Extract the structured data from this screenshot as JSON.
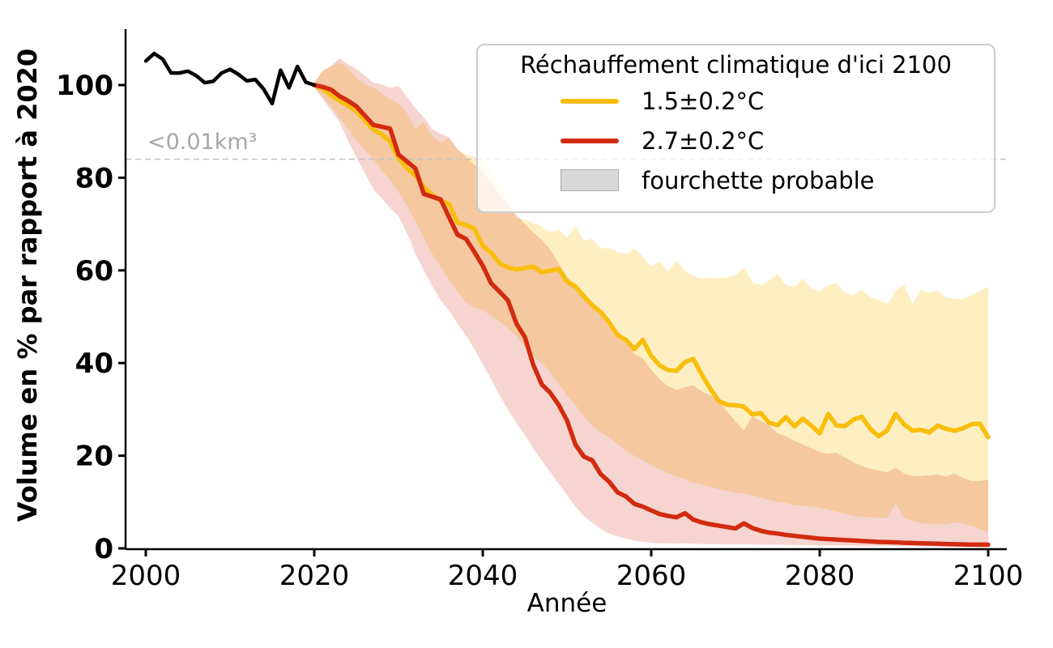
{
  "figure": {
    "y_axis_label": "Volume en % par rapport à 2020",
    "x_axis_label": "Année",
    "threshold_label": "<0.01km³"
  },
  "legend": {
    "title": "Réchauffement climatique d'ici 2100",
    "items": [
      {
        "label": "1.5±0.2°C",
        "swatch": "line",
        "color": "#f9be0b"
      },
      {
        "label": "2.7±0.2°C",
        "swatch": "line",
        "color": "#d22b10"
      },
      {
        "label": "fourchette probable",
        "swatch": "patch",
        "color": "#d9d9d9"
      }
    ]
  },
  "chart_data": {
    "type": "line",
    "title": "",
    "xlabel": "Année",
    "ylabel": "Volume en % par rapport à 2020",
    "xlim": [
      1997.6,
      2102.2
    ],
    "ylim": [
      0,
      112
    ],
    "xticks": [
      2000,
      2020,
      2040,
      2060,
      2080,
      2100
    ],
    "yticks": [
      0,
      20,
      40,
      60,
      80,
      100
    ],
    "grid": false,
    "legend_position": "upper right",
    "threshold": {
      "value": 84,
      "label": "<0.01km³",
      "style": "dashed",
      "color": "#c4c4c4"
    },
    "colors": {
      "historical": "#000000",
      "scenario_15": "#f9be0b",
      "scenario_27": "#d22b10",
      "band_15_fill": "rgba(250,191,15,0.25)",
      "band_27_fill": "rgba(208,44,18,0.20)"
    },
    "series": [
      {
        "name": "historique 2000-2020",
        "color": "#000000",
        "x": [
          2000,
          2001,
          2002,
          2003,
          2004,
          2005,
          2006,
          2007,
          2008,
          2009,
          2010,
          2011,
          2012,
          2013,
          2014,
          2015,
          2016,
          2017,
          2018,
          2019,
          2020
        ],
        "y": [
          105.2,
          106.8,
          105.6,
          102.6,
          102.6,
          103.0,
          102.0,
          100.5,
          100.8,
          102.6,
          103.4,
          102.3,
          100.9,
          101.2,
          99.1,
          96.0,
          103.2,
          99.4,
          104.0,
          100.6,
          100.0
        ]
      },
      {
        "name": "1.5±0.2°C",
        "color": "#f9be0b",
        "x": [
          2020,
          2021,
          2022,
          2023,
          2024,
          2025,
          2026,
          2027,
          2028,
          2029,
          2030,
          2031,
          2032,
          2033,
          2034,
          2035,
          2036,
          2037,
          2038,
          2039,
          2040,
          2041,
          2042,
          2043,
          2044,
          2045,
          2046,
          2047,
          2048,
          2049,
          2050,
          2051,
          2052,
          2053,
          2054,
          2055,
          2056,
          2057,
          2058,
          2059,
          2060,
          2061,
          2062,
          2063,
          2064,
          2065,
          2066,
          2067,
          2068,
          2069,
          2070,
          2071,
          2072,
          2073,
          2074,
          2075,
          2076,
          2077,
          2078,
          2079,
          2080,
          2081,
          2082,
          2083,
          2084,
          2085,
          2086,
          2087,
          2088,
          2089,
          2090,
          2091,
          2092,
          2093,
          2094,
          2095,
          2096,
          2097,
          2098,
          2099,
          2100
        ],
        "y": [
          100.0,
          99.2,
          97.8,
          96.6,
          95.6,
          94.4,
          92.4,
          90.4,
          89.4,
          87.8,
          84.3,
          82.0,
          80.5,
          78.0,
          76.3,
          75.0,
          74.4,
          70.3,
          69.8,
          69.0,
          65.3,
          63.8,
          61.5,
          60.6,
          60.2,
          60.5,
          60.8,
          59.6,
          59.9,
          60.3,
          57.6,
          56.5,
          54.4,
          52.5,
          51.0,
          48.8,
          46.0,
          45.0,
          43.0,
          45.0,
          41.5,
          39.5,
          38.5,
          38.3,
          40.2,
          40.9,
          37.5,
          34.5,
          31.8,
          31.0,
          30.9,
          30.6,
          28.9,
          29.2,
          27.1,
          26.6,
          28.3,
          26.3,
          28.0,
          26.5,
          24.8,
          29.0,
          26.5,
          26.4,
          27.8,
          28.4,
          25.8,
          24.2,
          25.4,
          29.0,
          26.8,
          25.4,
          25.6,
          25.0,
          26.5,
          25.8,
          25.4,
          25.9,
          26.8,
          26.9,
          24.0
        ],
        "band_low": [
          99.5,
          97.5,
          95.5,
          93.0,
          90.5,
          88.1,
          86.0,
          84.0,
          81.6,
          79.5,
          76.9,
          74.0,
          70.6,
          67.0,
          63.6,
          60.7,
          58.0,
          55.5,
          53.1,
          52.0,
          51.4,
          50.2,
          49.0,
          47.5,
          45.8,
          43.5,
          41.5,
          40.0,
          38.0,
          35.5,
          33.0,
          31.0,
          28.5,
          26.5,
          25.0,
          24.0,
          22.5,
          21.0,
          20.0,
          19.0,
          18.0,
          17.0,
          16.2,
          15.5,
          15.0,
          14.2,
          13.8,
          13.2,
          12.8,
          12.4,
          12.0,
          11.8,
          11.4,
          11.0,
          10.5,
          10.0,
          9.8,
          9.4,
          9.2,
          9.0,
          8.8,
          8.4,
          7.9,
          7.5,
          7.1,
          6.8,
          6.7,
          6.6,
          6.5,
          9.7,
          6.5,
          6.0,
          5.4,
          5.3,
          5.3,
          5.2,
          5.6,
          5.4,
          4.8,
          4.2,
          3.4
        ],
        "band_high": [
          100.5,
          103.0,
          104.0,
          105.0,
          103.5,
          101.5,
          100.2,
          99.5,
          98.2,
          97.0,
          96.0,
          94.0,
          90.5,
          92.0,
          89.0,
          87.5,
          88.5,
          86.0,
          85.0,
          84.5,
          83.5,
          81.0,
          78.0,
          74.5,
          71.2,
          71.0,
          70.2,
          69.5,
          68.3,
          68.8,
          67.1,
          69.5,
          66.5,
          66.8,
          64.7,
          64.9,
          64.0,
          63.5,
          64.8,
          63.0,
          60.8,
          62.0,
          59.8,
          62.1,
          59.9,
          58.7,
          58.3,
          58.4,
          58.3,
          58.5,
          59.0,
          60.6,
          57.5,
          56.8,
          57.8,
          59.3,
          56.8,
          56.5,
          58.3,
          56.2,
          55.4,
          56.8,
          57.2,
          55.2,
          54.6,
          55.8,
          54.2,
          53.6,
          52.8,
          55.6,
          57.0,
          52.8,
          55.8,
          55.2,
          55.7,
          54.2,
          53.9,
          53.8,
          54.6,
          55.5,
          56.5
        ]
      },
      {
        "name": "2.7±0.2°C",
        "color": "#d22b10",
        "x": [
          2020,
          2021,
          2022,
          2023,
          2024,
          2025,
          2026,
          2027,
          2028,
          2029,
          2030,
          2031,
          2032,
          2033,
          2034,
          2035,
          2036,
          2037,
          2038,
          2039,
          2040,
          2041,
          2042,
          2043,
          2044,
          2045,
          2046,
          2047,
          2048,
          2049,
          2050,
          2051,
          2052,
          2053,
          2054,
          2055,
          2056,
          2057,
          2058,
          2059,
          2060,
          2061,
          2062,
          2063,
          2064,
          2065,
          2066,
          2067,
          2068,
          2069,
          2070,
          2071,
          2072,
          2073,
          2074,
          2075,
          2076,
          2077,
          2078,
          2079,
          2080,
          2081,
          2082,
          2083,
          2084,
          2085,
          2086,
          2087,
          2088,
          2089,
          2090,
          2091,
          2092,
          2093,
          2094,
          2095,
          2096,
          2097,
          2098,
          2099,
          2100
        ],
        "y": [
          100.0,
          99.6,
          99.0,
          97.6,
          96.6,
          95.4,
          93.4,
          91.4,
          91.0,
          90.6,
          85.0,
          83.5,
          82.0,
          76.5,
          75.9,
          75.3,
          71.5,
          67.7,
          66.8,
          64.0,
          61.0,
          57.2,
          55.4,
          53.5,
          48.5,
          45.6,
          39.6,
          35.4,
          33.6,
          31.0,
          27.6,
          22.4,
          19.8,
          19.0,
          16.0,
          14.4,
          12.1,
          11.2,
          9.6,
          9.0,
          8.2,
          7.4,
          7.0,
          6.7,
          7.6,
          6.2,
          5.6,
          5.2,
          4.9,
          4.6,
          4.3,
          5.4,
          4.4,
          3.8,
          3.4,
          3.2,
          2.9,
          2.7,
          2.5,
          2.3,
          2.1,
          2.0,
          1.9,
          1.8,
          1.7,
          1.6,
          1.5,
          1.4,
          1.35,
          1.3,
          1.2,
          1.15,
          1.1,
          1.05,
          1.0,
          0.95,
          0.9,
          0.85,
          0.8,
          0.8,
          0.8
        ],
        "band_low": [
          99.5,
          97.0,
          94.5,
          92.0,
          88.0,
          84.3,
          81.0,
          77.6,
          75.5,
          73.5,
          71.7,
          68.0,
          63.6,
          60.0,
          56.6,
          53.6,
          51.3,
          48.5,
          46.0,
          43.0,
          39.7,
          36.5,
          33.0,
          30.0,
          27.0,
          24.5,
          21.5,
          19.0,
          16.5,
          14.0,
          11.5,
          9.0,
          7.0,
          5.5,
          4.2,
          3.2,
          2.6,
          2.1,
          1.7,
          1.4,
          1.2,
          1.1,
          1.05,
          1.0,
          1.1,
          1.0,
          0.95,
          0.9,
          0.9,
          0.85,
          0.85,
          0.9,
          0.85,
          0.8,
          0.8,
          0.8,
          0.75,
          0.75,
          0.7,
          0.7,
          0.65,
          0.65,
          0.6,
          0.6,
          0.6,
          0.55,
          0.55,
          0.5,
          0.5,
          0.5,
          0.45,
          0.45,
          0.4,
          0.4,
          0.4,
          0.35,
          0.35,
          0.3,
          0.3,
          0.25,
          0.2
        ],
        "band_high": [
          100.5,
          103.0,
          104.2,
          105.8,
          104.5,
          103.5,
          102.0,
          100.5,
          100.2,
          99.4,
          99.8,
          97.5,
          95.0,
          93.0,
          90.5,
          89.5,
          88.7,
          86.2,
          84.5,
          82.8,
          81.4,
          78.8,
          76.2,
          74.0,
          72.0,
          70.0,
          68.2,
          66.6,
          64.5,
          61.5,
          58.6,
          56.8,
          55.1,
          52.3,
          50.8,
          48.4,
          46.8,
          45.3,
          42.0,
          41.0,
          38.5,
          36.5,
          35.0,
          34.2,
          34.8,
          35.2,
          33.9,
          33.0,
          32.1,
          29.5,
          27.4,
          25.5,
          28.5,
          27.5,
          26.6,
          24.8,
          24.2,
          23.2,
          22.4,
          21.6,
          20.8,
          20.4,
          20.6,
          19.6,
          18.6,
          17.8,
          17.2,
          16.8,
          16.4,
          17.4,
          16.2,
          15.6,
          15.6,
          15.8,
          16.0,
          15.5,
          16.2,
          15.2,
          14.5,
          14.5,
          14.8
        ]
      }
    ]
  }
}
